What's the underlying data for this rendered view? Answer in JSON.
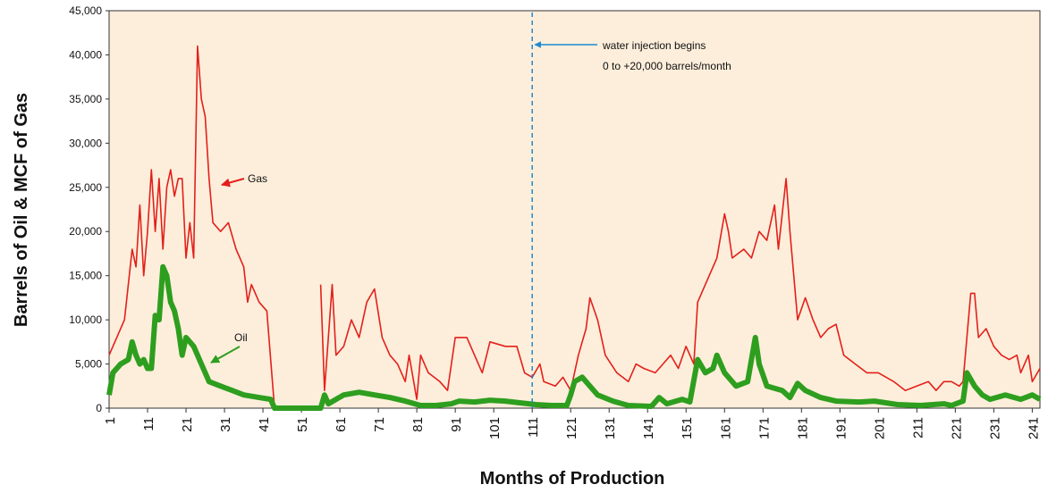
{
  "chart_data": {
    "type": "line",
    "xlabel": "Months of Production",
    "ylabel": "Barrels of Oil & MCF of Gas",
    "xlim": [
      1,
      243
    ],
    "ylim": [
      0,
      45000
    ],
    "xticks": [
      1,
      11,
      21,
      31,
      41,
      51,
      61,
      71,
      81,
      91,
      101,
      111,
      121,
      131,
      141,
      151,
      161,
      171,
      181,
      191,
      201,
      211,
      221,
      231,
      241
    ],
    "yticks": [
      0,
      {
        "value": 5000,
        "label": "5,000"
      },
      {
        "value": 10000,
        "label": "10,000"
      },
      {
        "value": 15000,
        "label": "15,000"
      },
      {
        "value": 20000,
        "label": "20,000"
      },
      {
        "value": 25000,
        "label": "25,000"
      },
      {
        "value": 30000,
        "label": "30,000"
      },
      {
        "value": 35000,
        "label": "35,000"
      },
      {
        "value": 40000,
        "label": "40,000"
      },
      {
        "value": 45000,
        "label": "45,000"
      }
    ],
    "background": "#fdeedb",
    "annotation": {
      "x": 111,
      "color": "#1b8ad3",
      "lines": [
        "water injection begins",
        "0 to +20,000 barrels/month"
      ]
    },
    "series": [
      {
        "name": "Gas",
        "color": "#e3201b",
        "width": 1.6,
        "x": [
          1,
          3,
          5,
          7,
          8,
          9,
          10,
          11,
          12,
          13,
          14,
          15,
          16,
          17,
          18,
          19,
          20,
          21,
          22,
          23,
          24,
          25,
          26,
          27,
          28,
          30,
          32,
          34,
          36,
          37,
          38,
          40,
          42,
          44,
          45,
          56,
          57,
          59,
          60,
          62,
          64,
          66,
          68,
          70,
          72,
          74,
          76,
          78,
          79,
          81,
          82,
          84,
          87,
          89,
          91,
          94,
          96,
          98,
          100,
          104,
          107,
          109,
          111,
          113,
          114,
          117,
          119,
          121,
          123,
          125,
          126,
          128,
          130,
          133,
          136,
          138,
          140,
          143,
          145,
          147,
          149,
          151,
          153,
          154,
          157,
          159,
          161,
          162,
          163,
          166,
          168,
          170,
          172,
          174,
          175,
          177,
          178,
          179,
          180,
          182,
          184,
          186,
          188,
          190,
          192,
          195,
          198,
          201,
          205,
          208,
          211,
          214,
          216,
          218,
          220,
          222,
          223,
          225,
          226,
          227,
          229,
          231,
          233,
          235,
          237,
          238,
          240,
          241,
          243
        ],
        "values": [
          6000,
          8000,
          10000,
          18000,
          16000,
          23000,
          15000,
          20000,
          27000,
          20000,
          26000,
          18000,
          25000,
          27000,
          24000,
          26000,
          26000,
          17000,
          21000,
          17000,
          41000,
          35000,
          33000,
          26000,
          21000,
          20000,
          21000,
          18000,
          16000,
          12000,
          14000,
          12000,
          11000,
          0,
          null,
          14000,
          2000,
          14000,
          6000,
          7000,
          10000,
          8000,
          12000,
          13500,
          8000,
          6000,
          5000,
          3000,
          6000,
          1000,
          6000,
          4000,
          3000,
          2000,
          8000,
          8000,
          6000,
          4000,
          7500,
          7000,
          7000,
          4000,
          3500,
          5000,
          3000,
          2500,
          3500,
          2000,
          6000,
          9000,
          12500,
          10000,
          6000,
          4000,
          3000,
          5000,
          4500,
          4000,
          5000,
          6000,
          4500,
          7000,
          5000,
          12000,
          15000,
          17000,
          22000,
          20000,
          17000,
          18000,
          17000,
          20000,
          19000,
          23000,
          18000,
          26000,
          20000,
          15000,
          10000,
          12500,
          10000,
          8000,
          9000,
          9500,
          6000,
          5000,
          4000,
          4000,
          3000,
          2000,
          2500,
          3000,
          2000,
          3000,
          3000,
          2500,
          3000,
          13000,
          13000,
          8000,
          9000,
          7000,
          6000,
          5500,
          6000,
          4000,
          6000,
          3000,
          4500
        ]
      },
      {
        "name": "Oil",
        "color": "#2e9e1f",
        "width": 6,
        "x": [
          1,
          2,
          4,
          6,
          7,
          8,
          9,
          10,
          11,
          12,
          13,
          14,
          15,
          16,
          17,
          18,
          19,
          20,
          21,
          22,
          23,
          25,
          27,
          30,
          33,
          36,
          40,
          43,
          44,
          56,
          57,
          58,
          60,
          62,
          66,
          70,
          74,
          78,
          82,
          86,
          90,
          92,
          96,
          100,
          104,
          108,
          112,
          116,
          120,
          121,
          122,
          124,
          126,
          128,
          132,
          136,
          142,
          144,
          146,
          150,
          152,
          154,
          156,
          158,
          159,
          161,
          164,
          167,
          169,
          170,
          172,
          176,
          178,
          180,
          182,
          186,
          190,
          196,
          200,
          206,
          212,
          218,
          220,
          223,
          224,
          226,
          228,
          230,
          234,
          238,
          241,
          243
        ],
        "values": [
          1500,
          4000,
          5000,
          5500,
          7500,
          6000,
          5000,
          5500,
          4500,
          4500,
          10500,
          10000,
          16000,
          15000,
          12000,
          11000,
          9000,
          6000,
          8000,
          7500,
          7000,
          5000,
          3000,
          2500,
          2000,
          1500,
          1200,
          1000,
          0,
          0,
          1500,
          500,
          1000,
          1500,
          1800,
          1500,
          1200,
          800,
          300,
          300,
          500,
          800,
          700,
          900,
          800,
          600,
          400,
          300,
          300,
          1500,
          3000,
          3500,
          2500,
          1500,
          800,
          300,
          200,
          1200,
          500,
          1000,
          700,
          5500,
          4000,
          4500,
          6000,
          4000,
          2500,
          3000,
          8000,
          5000,
          2500,
          2000,
          1200,
          2800,
          2000,
          1200,
          800,
          700,
          800,
          400,
          300,
          500,
          300,
          800,
          4000,
          2500,
          1500,
          1000,
          1500,
          1000,
          1500,
          1000
        ]
      }
    ]
  }
}
